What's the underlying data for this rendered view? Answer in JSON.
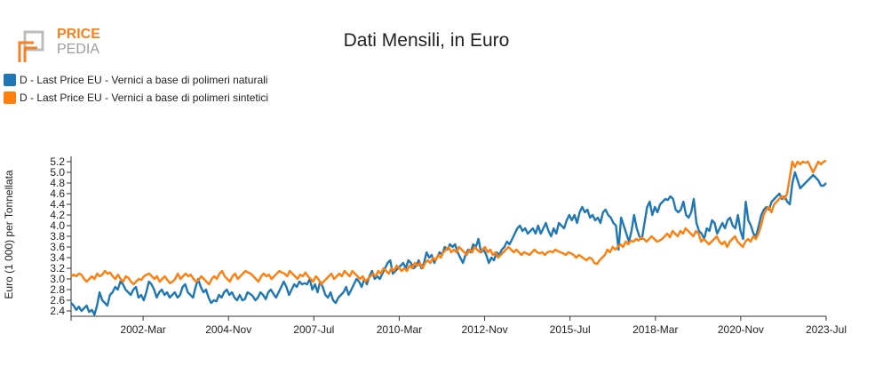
{
  "logo": {
    "line1": "PRICE",
    "line2": "PEDIA",
    "brand_color": "#f58220",
    "gray": "#9e9e9e"
  },
  "chart_data": {
    "type": "line",
    "title": "Dati Mensili, in Euro",
    "xlabel": "",
    "ylabel": "Euro (1 000) per Tonnellata",
    "x_start": "1999-12",
    "x_end": "2023-07",
    "x_ticks": [
      "2002-Mar",
      "2004-Nov",
      "2007-Jul",
      "2010-Mar",
      "2012-Nov",
      "2015-Jul",
      "2018-Mar",
      "2020-Nov",
      "2023-Jul"
    ],
    "x_tick_months": [
      27,
      59,
      91,
      123,
      155,
      187,
      219,
      251,
      283
    ],
    "ylim": [
      2.3,
      5.3
    ],
    "y_ticks": [
      2.4,
      2.6,
      2.8,
      3.0,
      3.2,
      3.4,
      3.6,
      3.8,
      4.0,
      4.2,
      4.4,
      4.6,
      4.8,
      5.0,
      5.2
    ],
    "y_tick_labels": [
      "2.4",
      "2.6",
      "2.8",
      "3.0",
      "3.2",
      "3.4",
      "3.6",
      "3.8",
      "4.0",
      "4.2",
      "4.4",
      "4.6",
      "4.8",
      "5.0",
      "5.2"
    ],
    "series": [
      {
        "name": "D - Last Price EU - Vernici a base di polimeri naturali",
        "color": "#1f77b4",
        "values": [
          2.55,
          2.5,
          2.42,
          2.48,
          2.4,
          2.45,
          2.5,
          2.38,
          2.42,
          2.33,
          2.5,
          2.75,
          2.6,
          2.55,
          2.5,
          2.7,
          2.75,
          2.85,
          2.8,
          2.95,
          2.9,
          2.8,
          2.75,
          2.7,
          2.8,
          2.85,
          2.65,
          2.7,
          2.6,
          2.75,
          2.95,
          2.9,
          2.8,
          2.65,
          2.75,
          2.8,
          2.7,
          2.75,
          2.65,
          2.7,
          2.75,
          2.65,
          2.7,
          2.85,
          2.9,
          2.75,
          2.7,
          2.65,
          2.85,
          3.0,
          2.85,
          2.75,
          2.8,
          2.65,
          2.55,
          2.6,
          2.58,
          2.7,
          2.65,
          2.75,
          2.8,
          2.7,
          2.75,
          2.65,
          2.6,
          2.7,
          2.6,
          2.62,
          2.75,
          2.72,
          2.68,
          2.6,
          2.65,
          2.75,
          2.7,
          2.62,
          2.75,
          2.8,
          2.72,
          2.65,
          2.75,
          2.85,
          2.95,
          2.85,
          2.7,
          2.8,
          2.9,
          2.85,
          2.95,
          2.9,
          2.92,
          2.9,
          3.0,
          2.8,
          2.9,
          2.75,
          2.95,
          2.85,
          2.7,
          2.65,
          2.75,
          2.6,
          2.55,
          2.65,
          2.7,
          2.75,
          2.85,
          2.7,
          2.8,
          2.9,
          3.0,
          2.95,
          2.85,
          3.0,
          2.9,
          3.05,
          3.15,
          3.0,
          3.05,
          3.0,
          3.1,
          3.2,
          3.3,
          3.35,
          3.1,
          3.15,
          3.2,
          3.25,
          3.3,
          3.2,
          3.35,
          3.3,
          3.2,
          3.25,
          3.35,
          3.2,
          3.3,
          3.5,
          3.4,
          3.45,
          3.3,
          3.4,
          3.5,
          3.45,
          3.6,
          3.55,
          3.65,
          3.6,
          3.65,
          3.5,
          3.4,
          3.3,
          3.45,
          3.55,
          3.5,
          3.65,
          3.6,
          3.75,
          3.5,
          3.55,
          3.45,
          3.3,
          3.4,
          3.35,
          3.5,
          3.45,
          3.55,
          3.6,
          3.7,
          3.65,
          3.75,
          3.85,
          3.95,
          4.0,
          3.9,
          3.95,
          3.85,
          3.9,
          3.95,
          3.85,
          4.0,
          3.85,
          3.95,
          4.05,
          3.9,
          3.8,
          3.95,
          3.85,
          4.05,
          4.0,
          3.95,
          4.1,
          4.2,
          4.1,
          4.2,
          4.05,
          4.25,
          4.35,
          4.25,
          4.3,
          4.15,
          4.2,
          4.1,
          4.15,
          4.05,
          4.25,
          4.3,
          4.2,
          4.15,
          4.05,
          4.0,
          3.55,
          4.15,
          4.0,
          3.85,
          3.7,
          3.9,
          4.2,
          3.95,
          3.8,
          3.75,
          4.05,
          4.35,
          4.45,
          4.2,
          4.35,
          4.25,
          4.4,
          4.45,
          4.5,
          4.48,
          4.55,
          4.5,
          4.3,
          4.25,
          4.3,
          4.45,
          4.2,
          4.15,
          4.25,
          4.5,
          4.05,
          3.9,
          3.85,
          3.75,
          3.95,
          3.9,
          4.1,
          4.05,
          3.85,
          3.95,
          4.05,
          3.95,
          4.1,
          4.15,
          4.0,
          3.95,
          4.2,
          3.9,
          3.75,
          4.45,
          4.1,
          4.0,
          3.85,
          3.8,
          4.0,
          4.2,
          4.3,
          4.35,
          4.3,
          4.45,
          4.5,
          4.55,
          4.6,
          4.5,
          4.55,
          4.45,
          4.4,
          4.8,
          5.0,
          4.85,
          4.7,
          4.75,
          4.8,
          4.85,
          4.9,
          4.95,
          4.9,
          4.85,
          4.75,
          4.75,
          4.8
        ]
      },
      {
        "name": "D - Last Price EU - Vernici a base di polimeri sintetici",
        "color": "#ff7f0e",
        "values": [
          3.05,
          3.08,
          3.05,
          3.1,
          3.08,
          3.0,
          2.95,
          3.0,
          3.05,
          3.0,
          3.1,
          3.05,
          3.08,
          3.15,
          3.1,
          3.12,
          3.05,
          3.0,
          3.08,
          3.0,
          2.95,
          3.05,
          3.02,
          2.95,
          2.9,
          2.95,
          3.0,
          2.98,
          3.05,
          3.08,
          3.1,
          3.05,
          3.0,
          3.05,
          2.95,
          3.0,
          3.05,
          2.98,
          2.92,
          2.95,
          3.0,
          3.1,
          3.0,
          3.05,
          3.1,
          3.05,
          3.08,
          3.0,
          2.95,
          2.98,
          3.05,
          3.0,
          2.95,
          2.9,
          3.0,
          3.05,
          3.0,
          3.1,
          3.15,
          3.05,
          3.0,
          2.95,
          3.05,
          3.1,
          3.0,
          3.05,
          3.1,
          3.15,
          3.12,
          3.1,
          3.05,
          3.0,
          2.95,
          3.05,
          3.1,
          3.05,
          3.08,
          3.0,
          3.05,
          3.1,
          3.15,
          3.12,
          3.1,
          3.05,
          3.15,
          3.1,
          3.05,
          3.0,
          3.08,
          3.05,
          3.12,
          3.05,
          3.0,
          2.95,
          3.05,
          3.0,
          2.9,
          2.95,
          3.0,
          3.05,
          3.1,
          3.0,
          3.05,
          3.1,
          3.05,
          3.15,
          3.1,
          3.05,
          3.15,
          3.1,
          3.05,
          3.0,
          3.05,
          2.95,
          3.0,
          3.05,
          3.1,
          3.05,
          3.15,
          3.1,
          3.2,
          3.15,
          3.1,
          3.2,
          3.15,
          3.25,
          3.2,
          3.15,
          3.2,
          3.15,
          3.25,
          3.2,
          3.3,
          3.25,
          3.3,
          3.2,
          3.3,
          3.35,
          3.3,
          3.4,
          3.35,
          3.45,
          3.4,
          3.5,
          3.55,
          3.6,
          3.5,
          3.55,
          3.5,
          3.6,
          3.55,
          3.5,
          3.45,
          3.55,
          3.5,
          3.6,
          3.55,
          3.5,
          3.55,
          3.6,
          3.5,
          3.55,
          3.45,
          3.5,
          3.4,
          3.45,
          3.5,
          3.55,
          3.6,
          3.55,
          3.5,
          3.55,
          3.5,
          3.45,
          3.5,
          3.48,
          3.45,
          3.5,
          3.55,
          3.5,
          3.48,
          3.5,
          3.45,
          3.5,
          3.52,
          3.5,
          3.55,
          3.52,
          3.5,
          3.48,
          3.45,
          3.5,
          3.48,
          3.45,
          3.4,
          3.45,
          3.42,
          3.38,
          3.35,
          3.4,
          3.38,
          3.3,
          3.28,
          3.35,
          3.4,
          3.45,
          3.55,
          3.5,
          3.6,
          3.55,
          3.6,
          3.65,
          3.6,
          3.7,
          3.65,
          3.72,
          3.7,
          3.75,
          3.72,
          3.78,
          3.75,
          3.7,
          3.75,
          3.8,
          3.75,
          3.7,
          3.72,
          3.75,
          3.8,
          3.85,
          3.78,
          3.9,
          3.85,
          3.8,
          3.9,
          3.85,
          3.95,
          3.9,
          3.85,
          3.8,
          3.9,
          3.85,
          3.7,
          3.75,
          3.7,
          3.65,
          3.7,
          3.75,
          3.8,
          3.7,
          3.65,
          3.7,
          3.6,
          3.7,
          3.75,
          3.8,
          3.7,
          3.65,
          3.6,
          3.7,
          3.75,
          3.7,
          3.8,
          3.75,
          3.85,
          4.0,
          4.2,
          4.3,
          4.35,
          4.25,
          4.4,
          4.45,
          4.5,
          4.55,
          4.5,
          4.6,
          4.9,
          5.2,
          5.1,
          5.2,
          5.15,
          5.2,
          5.18,
          5.2,
          5.1,
          5.0,
          5.1,
          5.2,
          5.15,
          5.2,
          5.22
        ]
      }
    ]
  }
}
